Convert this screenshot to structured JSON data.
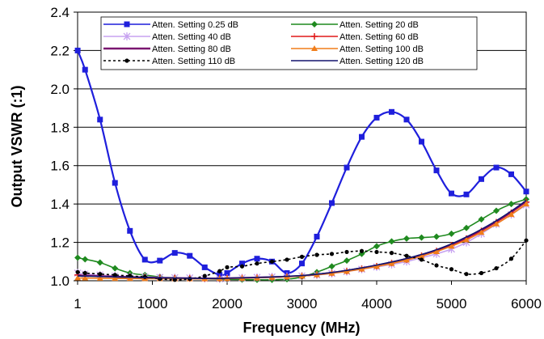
{
  "chart_data": {
    "type": "line",
    "title": "",
    "xlabel": "Frequency (MHz)",
    "ylabel": "Output VSWR (:1)",
    "xlim": [
      0,
      6000
    ],
    "ylim": [
      1.0,
      2.4
    ],
    "x_ticks": [
      0,
      1000,
      2000,
      3000,
      4000,
      5000,
      6000
    ],
    "x_tick_labels": [
      "1",
      "1000",
      "2000",
      "3000",
      "4000",
      "5000",
      "6000"
    ],
    "y_ticks": [
      1.0,
      1.2,
      1.4,
      1.6,
      1.8,
      2.0,
      2.2,
      2.4
    ],
    "y_tick_labels": [
      "1.0",
      "1.2",
      "1.4",
      "1.6",
      "1.8",
      "2.0",
      "2.2",
      "2.4"
    ],
    "grid": "horizontal",
    "legend_position": "top",
    "series": [
      {
        "name": "Atten. Setting 0.25 dB",
        "color": "#1f1fdc",
        "marker": "square",
        "dashed": false,
        "x": [
          1,
          100,
          300,
          500,
          700,
          900,
          1100,
          1300,
          1500,
          1700,
          1900,
          2000,
          2200,
          2400,
          2600,
          2800,
          3000,
          3200,
          3400,
          3600,
          3800,
          4000,
          4200,
          4400,
          4600,
          4800,
          5000,
          5200,
          5400,
          5600,
          5800,
          6000
        ],
        "y": [
          2.2,
          2.1,
          1.84,
          1.51,
          1.26,
          1.11,
          1.105,
          1.145,
          1.13,
          1.07,
          1.03,
          1.04,
          1.09,
          1.115,
          1.1,
          1.04,
          1.09,
          1.23,
          1.405,
          1.59,
          1.75,
          1.85,
          1.88,
          1.84,
          1.725,
          1.575,
          1.455,
          1.45,
          1.53,
          1.59,
          1.555,
          1.465
        ]
      },
      {
        "name": "Atten. Setting 20 dB",
        "color": "#1f8a1f",
        "marker": "diamond",
        "dashed": false,
        "x": [
          1,
          100,
          300,
          500,
          700,
          900,
          1100,
          1300,
          1500,
          1700,
          1900,
          2000,
          2200,
          2400,
          2600,
          2800,
          3000,
          3200,
          3400,
          3600,
          3800,
          4000,
          4200,
          4400,
          4600,
          4800,
          5000,
          5200,
          5400,
          5600,
          5800,
          6000
        ],
        "y": [
          1.12,
          1.112,
          1.095,
          1.065,
          1.04,
          1.03,
          1.02,
          1.015,
          1.012,
          1.01,
          1.008,
          1.007,
          1.006,
          1.005,
          1.005,
          1.008,
          1.02,
          1.045,
          1.075,
          1.105,
          1.14,
          1.18,
          1.205,
          1.22,
          1.225,
          1.23,
          1.245,
          1.275,
          1.32,
          1.365,
          1.4,
          1.425
        ]
      },
      {
        "name": "Atten. Setting 40 dB",
        "color": "#c7a2f0",
        "marker": "asterisk",
        "dashed": false,
        "x": [
          1,
          100,
          300,
          500,
          700,
          900,
          1100,
          1300,
          1500,
          1700,
          1900,
          2000,
          2200,
          2400,
          2600,
          2800,
          3000,
          3200,
          3400,
          3600,
          3800,
          4000,
          4200,
          4400,
          4600,
          4800,
          5000,
          5200,
          5400,
          5600,
          5800,
          6000
        ],
        "y": [
          1.04,
          1.035,
          1.03,
          1.025,
          1.022,
          1.02,
          1.018,
          1.016,
          1.015,
          1.012,
          1.01,
          1.012,
          1.015,
          1.018,
          1.02,
          1.022,
          1.025,
          1.03,
          1.038,
          1.048,
          1.06,
          1.072,
          1.085,
          1.1,
          1.12,
          1.14,
          1.165,
          1.2,
          1.245,
          1.295,
          1.345,
          1.395
        ]
      },
      {
        "name": "Atten. Setting 60 dB",
        "color": "#e01818",
        "marker": "plus",
        "dashed": false,
        "x": [
          1,
          100,
          300,
          500,
          700,
          900,
          1100,
          1300,
          1500,
          1700,
          1900,
          2000,
          2200,
          2400,
          2600,
          2800,
          3000,
          3200,
          3400,
          3600,
          3800,
          4000,
          4200,
          4400,
          4600,
          4800,
          5000,
          5200,
          5400,
          5600,
          5800,
          6000
        ],
        "y": [
          1.03,
          1.028,
          1.025,
          1.022,
          1.02,
          1.018,
          1.016,
          1.014,
          1.013,
          1.012,
          1.012,
          1.013,
          1.014,
          1.016,
          1.018,
          1.021,
          1.025,
          1.032,
          1.04,
          1.05,
          1.062,
          1.076,
          1.092,
          1.11,
          1.13,
          1.155,
          1.185,
          1.22,
          1.26,
          1.305,
          1.355,
          1.41
        ]
      },
      {
        "name": "Atten. Setting 80 dB",
        "color": "#7a1670",
        "marker": "none",
        "dashed": false,
        "x": [
          1,
          100,
          300,
          500,
          700,
          900,
          1100,
          1300,
          1500,
          1700,
          1900,
          2000,
          2200,
          2400,
          2600,
          2800,
          3000,
          3200,
          3400,
          3600,
          3800,
          4000,
          4200,
          4400,
          4600,
          4800,
          5000,
          5200,
          5400,
          5600,
          5800,
          6000
        ],
        "y": [
          1.028,
          1.027,
          1.024,
          1.021,
          1.019,
          1.017,
          1.015,
          1.014,
          1.013,
          1.012,
          1.012,
          1.013,
          1.015,
          1.017,
          1.019,
          1.022,
          1.026,
          1.033,
          1.042,
          1.053,
          1.066,
          1.08,
          1.096,
          1.114,
          1.135,
          1.16,
          1.19,
          1.225,
          1.265,
          1.31,
          1.36,
          1.415
        ]
      },
      {
        "name": "Atten. Setting 100 dB",
        "color": "#f07d1a",
        "marker": "triangle",
        "dashed": false,
        "x": [
          1,
          100,
          300,
          500,
          700,
          900,
          1100,
          1300,
          1500,
          1700,
          1900,
          2000,
          2200,
          2400,
          2600,
          2800,
          3000,
          3200,
          3400,
          3600,
          3800,
          4000,
          4200,
          4400,
          4600,
          4800,
          5000,
          5200,
          5400,
          5600,
          5800,
          6000
        ],
        "y": [
          1.015,
          1.014,
          1.013,
          1.012,
          1.012,
          1.011,
          1.011,
          1.01,
          1.01,
          1.01,
          1.011,
          1.012,
          1.013,
          1.015,
          1.018,
          1.021,
          1.025,
          1.031,
          1.039,
          1.049,
          1.061,
          1.075,
          1.09,
          1.108,
          1.128,
          1.152,
          1.18,
          1.213,
          1.252,
          1.296,
          1.345,
          1.4
        ]
      },
      {
        "name": "Atten. Setting 110 dB",
        "color": "#000000",
        "marker": "circle",
        "dashed": true,
        "x": [
          1,
          100,
          300,
          500,
          700,
          900,
          1100,
          1300,
          1500,
          1700,
          1900,
          2000,
          2200,
          2400,
          2600,
          2800,
          3000,
          3200,
          3400,
          3600,
          3800,
          4000,
          4200,
          4400,
          4600,
          4800,
          5000,
          5200,
          5400,
          5600,
          5800,
          6000
        ],
        "y": [
          1.045,
          1.04,
          1.035,
          1.03,
          1.025,
          1.02,
          1.01,
          1.005,
          1.01,
          1.025,
          1.05,
          1.07,
          1.075,
          1.09,
          1.1,
          1.11,
          1.125,
          1.135,
          1.14,
          1.15,
          1.155,
          1.15,
          1.145,
          1.13,
          1.11,
          1.08,
          1.06,
          1.035,
          1.04,
          1.065,
          1.115,
          1.21
        ]
      },
      {
        "name": "Atten. Setting 120 dB",
        "color": "#14146e",
        "marker": "none",
        "dashed": false,
        "x": [
          1,
          100,
          300,
          500,
          700,
          900,
          1100,
          1300,
          1500,
          1700,
          1900,
          2000,
          2200,
          2400,
          2600,
          2800,
          3000,
          3200,
          3400,
          3600,
          3800,
          4000,
          4200,
          4400,
          4600,
          4800,
          5000,
          5200,
          5400,
          5600,
          5800,
          6000
        ],
        "y": [
          1.025,
          1.024,
          1.022,
          1.02,
          1.018,
          1.016,
          1.015,
          1.014,
          1.013,
          1.012,
          1.012,
          1.013,
          1.015,
          1.017,
          1.02,
          1.023,
          1.027,
          1.034,
          1.043,
          1.054,
          1.067,
          1.082,
          1.098,
          1.116,
          1.137,
          1.162,
          1.192,
          1.228,
          1.268,
          1.313,
          1.363,
          1.418
        ]
      }
    ]
  }
}
